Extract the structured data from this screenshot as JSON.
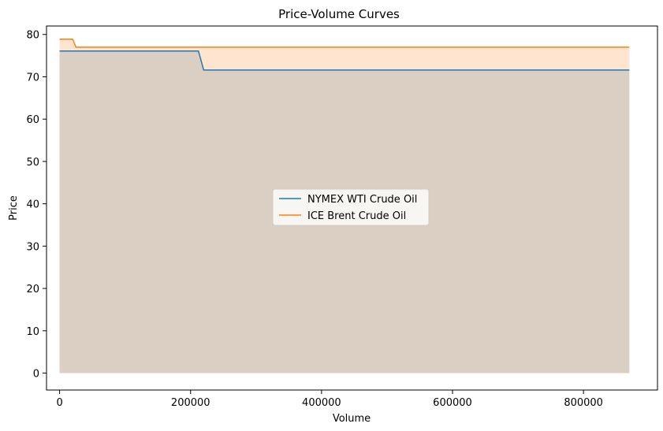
{
  "chart_data": {
    "type": "area",
    "title": "Price-Volume Curves",
    "xlabel": "Volume",
    "ylabel": "Price",
    "xlim": [
      -20000,
      913000
    ],
    "ylim": [
      -4,
      82
    ],
    "xticks": [
      0,
      200000,
      400000,
      600000,
      800000
    ],
    "yticks": [
      0,
      10,
      20,
      30,
      40,
      50,
      60,
      70,
      80
    ],
    "grid": false,
    "legend_position": "center",
    "series": [
      {
        "name": "NYMEX WTI Crude Oil",
        "color": "#1f77b4",
        "fill": "#1f77b4",
        "fill_opacity": 0.2,
        "x": [
          0,
          212000,
          220000,
          870000
        ],
        "y": [
          76.1,
          76.1,
          71.6,
          71.6
        ]
      },
      {
        "name": "ICE Brent Crude Oil",
        "color": "#ff7f0e",
        "fill": "#ff7f0e",
        "fill_opacity": 0.2,
        "x": [
          0,
          20000,
          25000,
          870000
        ],
        "y": [
          78.9,
          78.9,
          77.0,
          77.0
        ]
      }
    ]
  }
}
